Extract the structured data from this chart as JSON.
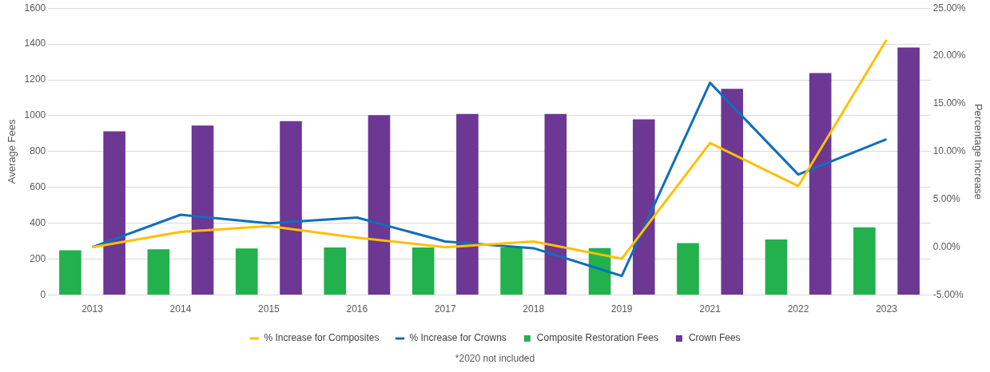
{
  "chart_data": {
    "type": "bar",
    "categories": [
      "2013",
      "2014",
      "2015",
      "2016",
      "2017",
      "2018",
      "2019",
      "2021",
      "2022",
      "2023"
    ],
    "ylabel": "Average Fees",
    "y2label": "Percentage Increase",
    "ylim": [
      0,
      1600
    ],
    "yticks": [
      0,
      200,
      400,
      600,
      800,
      1000,
      1200,
      1400,
      1600
    ],
    "y2lim": [
      -5,
      25
    ],
    "y2ticks": [
      {
        "value": -5,
        "label": "-5.00%"
      },
      {
        "value": 0,
        "label": "0.00%"
      },
      {
        "value": 5,
        "label": "5.00%"
      },
      {
        "value": 10,
        "label": "10.00%"
      },
      {
        "value": 15,
        "label": "15.00%"
      },
      {
        "value": 20,
        "label": "20.00%"
      },
      {
        "value": 25,
        "label": "25.00%"
      }
    ],
    "series": [
      {
        "name": "Composite Restoration Fees",
        "color": "#22b14c",
        "values": [
          250,
          255,
          260,
          265,
          265,
          265,
          262,
          290,
          310,
          378
        ]
      },
      {
        "name": "Crown Fees",
        "color": "#6d3794",
        "values": [
          913,
          945,
          970,
          1003,
          1010,
          1010,
          980,
          1150,
          1238,
          1380
        ]
      },
      {
        "name": "% Increase for Composites",
        "type": "line",
        "axis": "y2",
        "color": "#ffc000",
        "values": [
          0,
          1.6,
          2.2,
          1.0,
          0,
          0.6,
          -1.2,
          10.9,
          6.4,
          21.7
        ]
      },
      {
        "name": "% Increase for Crowns",
        "type": "line",
        "axis": "y2",
        "color": "#0f6fba",
        "values": [
          0,
          3.4,
          2.5,
          3.1,
          0.6,
          -0.1,
          -3.0,
          17.2,
          7.6,
          11.3
        ]
      }
    ],
    "grid": "y",
    "legend": "bottom",
    "marker": "none",
    "annotations": [
      "*2020 not included"
    ]
  }
}
